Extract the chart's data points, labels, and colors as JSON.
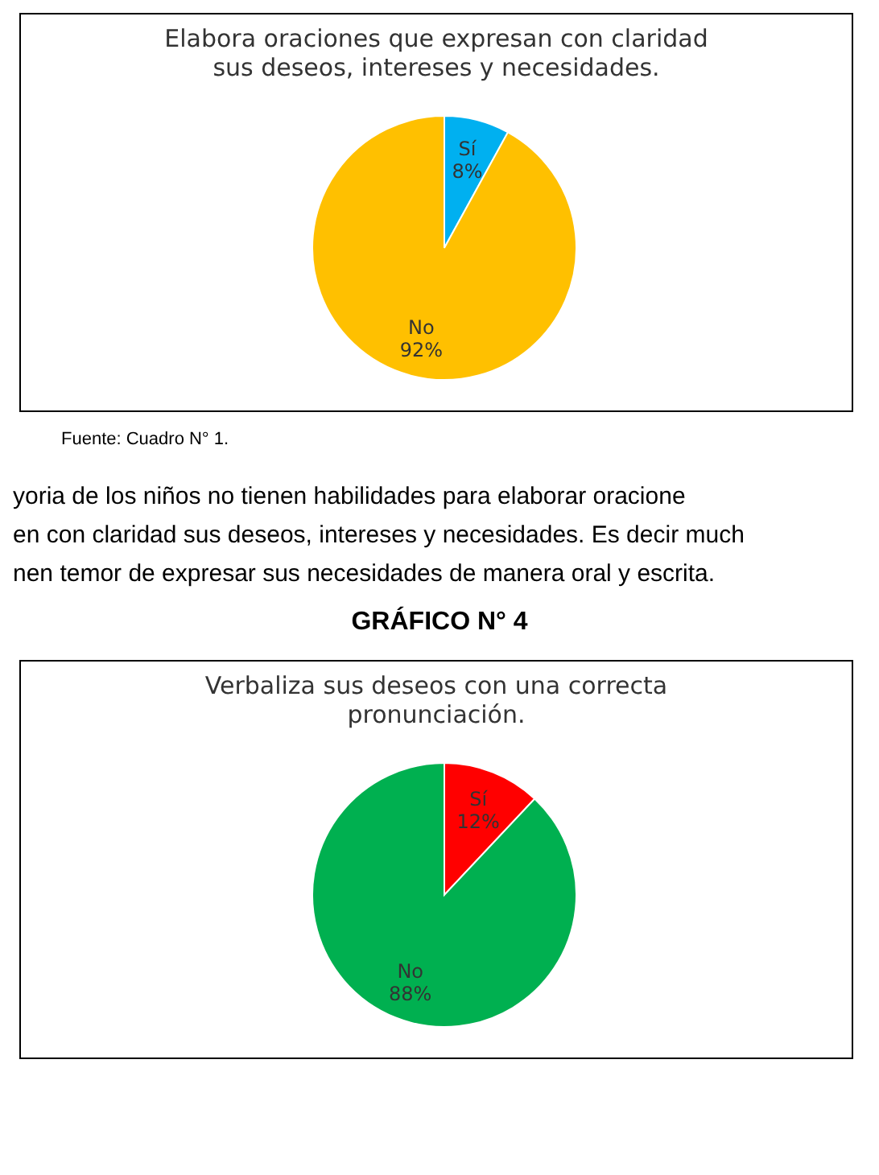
{
  "chart_data": [
    {
      "type": "pie",
      "title": "Elabora oraciones que expresan con claridad sus deseos, intereses y necesidades.",
      "categories": [
        "Sí",
        "No"
      ],
      "values": [
        8,
        92
      ],
      "colors": [
        "#00b0f0",
        "#ffc000"
      ],
      "value_labels": [
        "8%",
        "92%"
      ],
      "legend": false,
      "annotations": [
        "Fuente: Cuadro N° 1.",
        "yoria de los niños no tienen habilidades para elaborar oracione",
        "en con claridad sus deseos, intereses y necesidades. Es decir much",
        "nen temor de expresar sus necesidades de manera oral y escrita."
      ]
    },
    {
      "type": "pie",
      "subtitle": "GRÁFICO N° 4",
      "title": "Verbaliza sus deseos con una correcta pronunciación.",
      "categories": [
        "Sí",
        "No"
      ],
      "values": [
        12,
        88
      ],
      "colors": [
        "#ff0000",
        "#00b050"
      ],
      "value_labels": [
        "12%",
        "88%"
      ],
      "legend": false
    }
  ]
}
